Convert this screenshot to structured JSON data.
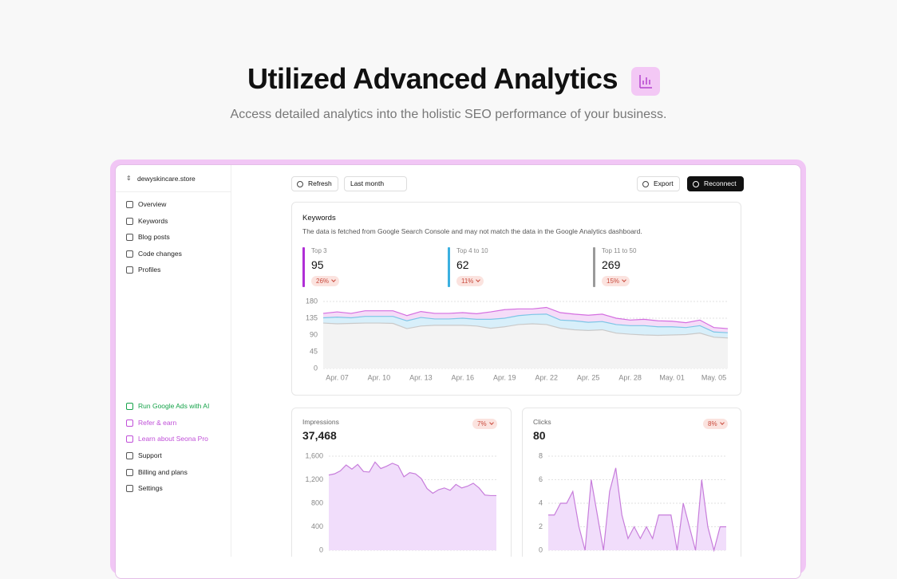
{
  "header": {
    "title": "Utilized Advanced Analytics",
    "subtitle": "Access detailed analytics into the holistic SEO performance of your business."
  },
  "sidebar": {
    "site": "dewyskincare.store",
    "nav": [
      "Overview",
      "Keywords",
      "Blog posts",
      "Code changes",
      "Profiles"
    ],
    "promos": [
      "Run Google Ads with AI",
      "Refer & earn",
      "Learn about Seona Pro"
    ],
    "footer_nav": [
      "Support",
      "Billing and plans",
      "Settings"
    ]
  },
  "toolbar": {
    "refresh": "Refresh",
    "period": "Last month",
    "export": "Export",
    "reconnect": "Reconnect"
  },
  "keywords": {
    "title": "Keywords",
    "description": "The data is fetched from Google Search Console and may not match the data in the Google Analytics dashboard.",
    "stats": [
      {
        "label": "Top 3",
        "value": 95,
        "change": "26%",
        "color": "#b02fd6"
      },
      {
        "label": "Top 4 to 10",
        "value": 62,
        "change": "11%",
        "color": "#3bb0e0"
      },
      {
        "label": "Top 11 to 50",
        "value": 269,
        "change": "15%",
        "color": "#9a9a9a"
      }
    ],
    "chart": {
      "type": "area",
      "categories": [
        null,
        "Apr. 07",
        null,
        null,
        "Apr. 10",
        null,
        null,
        "Apr. 13",
        null,
        null,
        "Apr. 16",
        null,
        null,
        "Apr. 19",
        null,
        null,
        "Apr. 22",
        null,
        null,
        "Apr. 25",
        null,
        null,
        "Apr. 28",
        null,
        null,
        "May. 01",
        null,
        null,
        "May. 05",
        null
      ],
      "series": [
        {
          "color": "#d46ee0",
          "fill": "#f5dcf8",
          "values": [
            148,
            152,
            148,
            155,
            155,
            155,
            142,
            153,
            148,
            148,
            150,
            147,
            152,
            158,
            160,
            160,
            164,
            150,
            146,
            143,
            146,
            135,
            130,
            132,
            128,
            127,
            123,
            130,
            110,
            107
          ]
        },
        {
          "color": "#7cc6e6",
          "fill": "#d8effa",
          "values": [
            136,
            138,
            136,
            140,
            140,
            140,
            128,
            137,
            133,
            133,
            135,
            132,
            132,
            135,
            142,
            145,
            146,
            130,
            128,
            124,
            126,
            118,
            115,
            115,
            112,
            112,
            110,
            115,
            98,
            96
          ]
        },
        {
          "color": "#c9c9c9",
          "fill": "#f3f3f3",
          "values": [
            122,
            120,
            121,
            122,
            122,
            121,
            107,
            114,
            116,
            116,
            116,
            114,
            108,
            112,
            118,
            120,
            118,
            108,
            104,
            102,
            104,
            95,
            92,
            90,
            89,
            90,
            91,
            95,
            84,
            82
          ]
        }
      ],
      "ylim": [
        0,
        180
      ],
      "yticks": [
        0,
        45,
        90,
        135,
        180
      ],
      "grid": true
    }
  },
  "impressions": {
    "title": "Impressions",
    "value": "37,468",
    "change": "7%",
    "chart": {
      "type": "area",
      "series": [
        {
          "color": "#c77ddb",
          "fill": "#f1ddfb",
          "values": [
            1280,
            1300,
            1350,
            1450,
            1380,
            1460,
            1340,
            1330,
            1500,
            1390,
            1430,
            1480,
            1440,
            1250,
            1320,
            1300,
            1220,
            1050,
            970,
            1030,
            1060,
            1020,
            1120,
            1060,
            1090,
            1140,
            1060,
            940,
            930,
            930
          ]
        }
      ],
      "ylim": [
        0,
        1600
      ],
      "yticks": [
        0,
        400,
        800,
        {
          "value": 1200,
          "label": "1,200"
        },
        {
          "value": 1600,
          "label": "1,600"
        }
      ],
      "grid": true
    }
  },
  "clicks": {
    "title": "Clicks",
    "value": 80,
    "change": "8%",
    "chart": {
      "type": "area",
      "series": [
        {
          "color": "#c77ddb",
          "fill": "#f1ddfb",
          "values": [
            3,
            3,
            4,
            4,
            5,
            2,
            0,
            6,
            3,
            0,
            5,
            7,
            3,
            1,
            2,
            1,
            2,
            1,
            3,
            3,
            3,
            0,
            4,
            2,
            0,
            6,
            2,
            0,
            2,
            2
          ]
        }
      ],
      "ylim": [
        0,
        8
      ],
      "yticks": [
        0,
        2,
        4,
        6,
        8
      ],
      "grid": true
    }
  }
}
